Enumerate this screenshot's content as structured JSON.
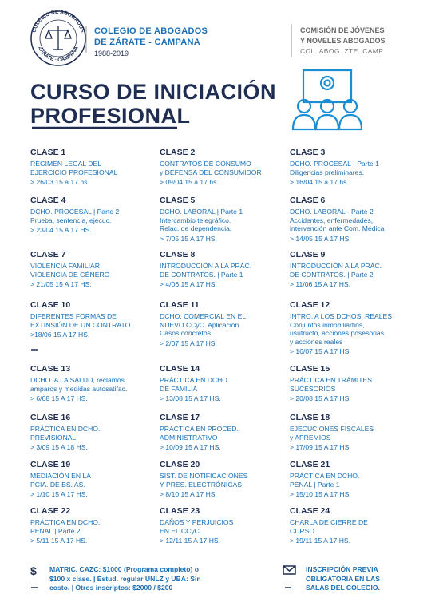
{
  "header": {
    "seal": [
      "COLEGIO DE ABOGADOS",
      "ZÁRATE · CAMPANA"
    ],
    "org": [
      "COLEGIO DE ABOGADOS",
      "DE ZÁRATE - CAMPANA"
    ],
    "years": "1988-2019",
    "commission": [
      "COMISIÓN DE JÓVENES",
      "Y NOVELES ABOGADOS"
    ],
    "commission_sub": "COL. ABOG. ZTE. CAMP"
  },
  "title": [
    "CURSO DE INICIACIÓN",
    "PROFESIONAL"
  ],
  "classes": [
    {
      "name": "CLASE 1",
      "lines": [
        "RÉGIMEN LEGAL DEL",
        "EJERCICIO PROFESIONAL"
      ],
      "date": "> 26/03 15 a 17 hs."
    },
    {
      "name": "CLASE 2",
      "lines": [
        "CONTRATOS DE CONSUMO",
        "y DEFENSA DEL CONSUMIDOR"
      ],
      "date": "> 09/04 15 a 17 hs."
    },
    {
      "name": "CLASE 3",
      "lines": [
        "DCHO. PROCESAL - Parte 1",
        "Diligencias preliminares."
      ],
      "date": "> 16/04 15 a 17 hs."
    },
    {
      "name": "CLASE 4",
      "lines": [
        "DCHO. PROCESAL | Parte 2",
        "Prueba, sentencia, ejecuc."
      ],
      "date": "> 23/04 15 A 17 HS."
    },
    {
      "name": "CLASE 5",
      "lines": [
        "DCHO. LABORAL | Parte 1",
        "Intercambio telegráfico.",
        "Relac. de dependencia."
      ],
      "date": "> 7/05 15 A 17 HS."
    },
    {
      "name": "CLASE 6",
      "lines": [
        "DCHO. LABORAL - Parte 2",
        "Accidentes, enfermedades,",
        "intervención ante Com. Médica"
      ],
      "date": "> 14/05 15 A 17 HS."
    },
    {
      "name": "CLASE 7",
      "lines": [
        "VIOLENCIA FAMILIAR",
        "VIOLENCIA DE GÉNERO"
      ],
      "date": "> 21/05 15 A 17 HS."
    },
    {
      "name": "CLASE 8",
      "lines": [
        "INTRODUCCIÓN A LA PRAC.",
        "DE CONTRATOS. | Parte 1"
      ],
      "date": "> 4/06 15 A 17 HS."
    },
    {
      "name": "CLASE 9",
      "lines": [
        "INTRODUCCIÓN A LA PRAC.",
        "DE CONTRATOS. | Parte 2"
      ],
      "date": "> 11/06 15 A 17 HS."
    },
    {
      "name": "CLASE 10",
      "lines": [
        "DIFERENTES FORMAS DE",
        "EXTINSIÓN DE UN CONTRATO"
      ],
      "date": ">18/06 15 A 17 HS."
    },
    {
      "name": "CLASE 11",
      "lines": [
        "DCHO. COMERCIAL EN EL",
        "NUEVO CCyC.  Aplicación",
        "Casos concretos."
      ],
      "date": "> 2/07 15 A 17 HS."
    },
    {
      "name": "CLASE 12",
      "lines": [
        "INTRO.  A LOS DCHOS. REALES",
        "Conjuntos inmobiliartios,",
        "usufructo, acciones posesorias",
        "y acciones reales"
      ],
      "date": "> 16/07 15 A 17 HS."
    },
    {
      "name": "CLASE 13",
      "lines": [
        "DCHO. A LA SALUD, reclamos",
        "amparos y medidas autosatifac."
      ],
      "date": "> 6/08 15 A 17 HS."
    },
    {
      "name": "CLASE 14",
      "lines": [
        "PRÁCTICA EN DCHO.",
        "DE FAMILIA"
      ],
      "date": "> 13/08 15 A 17 HS."
    },
    {
      "name": "CLASE 15",
      "lines": [
        "PRÁCTICA EN TRÁMITES",
        "SUCESORIOS"
      ],
      "date": "> 20/08 15 A 17 HS."
    },
    {
      "name": "CLASE 16",
      "lines": [
        "PRÁCTICA EN DCHO.",
        "PREVISIONAL"
      ],
      "date": "> 3/09 15 A 18 HS."
    },
    {
      "name": "CLASE 17",
      "lines": [
        "PRÁCTICA EN PROCED.",
        "ADMINISTRATIVO"
      ],
      "date": "> 10/09 15 A 17 HS."
    },
    {
      "name": "CLASE 18",
      "lines": [
        "EJECUCIONES FISCALES",
        "y APREMIOS"
      ],
      "date": "> 17/09 15 A 17 HS."
    },
    {
      "name": "CLASE 19",
      "lines": [
        "MEDIACIÓN EN LA",
        "PCIA. DE BS. AS."
      ],
      "date": "> 1/10 15 A 17 HS."
    },
    {
      "name": "CLASE 20",
      "lines": [
        "SIST. DE NOTIFICACIONES",
        "Y PRES. ELECTRÓNICAS"
      ],
      "date": "> 8/10 15 A 17 HS."
    },
    {
      "name": "CLASE 21",
      "lines": [
        "PRÁCTICA EN DCHO.",
        "PENAL | Parte 1"
      ],
      "date": "> 15/10 15 A 17 HS."
    },
    {
      "name": "CLASE 22",
      "lines": [
        "PRÁCTICA EN DCHO.",
        "PENAL | Parte 2"
      ],
      "date": "> 5/11 15 A 17 HS."
    },
    {
      "name": "CLASE 23",
      "lines": [
        "DAÑOS Y PERJUICIOS",
        "EN EL CCyC."
      ],
      "date": "> 12/11 15 A 17 HS."
    },
    {
      "name": "CLASE 24",
      "lines": [
        "CHARLA DE CIERRE DE",
        "CURSO"
      ],
      "date": "> 19/11 15 A 17 HS."
    }
  ],
  "footer": {
    "payment_symbol": "$",
    "payment": [
      "MATRIC. CAZC: $1000 (Programa completo) o",
      "$100 x clase. | Estud. regular UNLZ y UBA: Sin",
      "costo. | Otros inscriptos: $2000 / $200"
    ],
    "registration": [
      "INSCRIPCIÓN PREVIA",
      "OBLIGATORIA EN LAS",
      "SALAS DEL COLEGIO."
    ]
  }
}
